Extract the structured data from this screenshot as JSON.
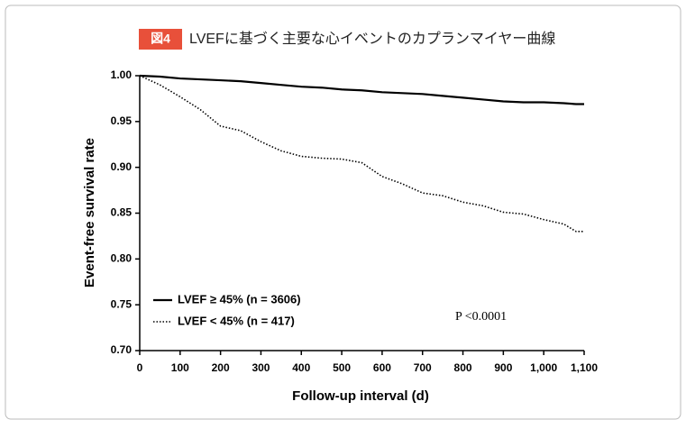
{
  "chart_data": {
    "type": "line",
    "badge": "図4",
    "title": "LVEFに基づく主要な心イベントのカプランマイヤー曲線",
    "x_label": "Follow-up interval (d)",
    "y_label": "Event-free survival rate",
    "annotation": "P <0.0001",
    "x": [
      0,
      50,
      100,
      150,
      200,
      250,
      300,
      350,
      400,
      450,
      500,
      550,
      600,
      650,
      700,
      750,
      800,
      850,
      900,
      950,
      1000,
      1050,
      1080,
      1100
    ],
    "series": [
      {
        "name": "LVEF ≥ 45% (n = 3606)",
        "color": "#000000",
        "style": "solid",
        "values": [
          1.0,
          0.999,
          0.997,
          0.996,
          0.995,
          0.994,
          0.992,
          0.99,
          0.988,
          0.987,
          0.985,
          0.984,
          0.982,
          0.981,
          0.98,
          0.978,
          0.976,
          0.974,
          0.972,
          0.971,
          0.971,
          0.97,
          0.969,
          0.969
        ]
      },
      {
        "name": "LVEF < 45% (n = 417)",
        "color": "#000000",
        "style": "dotted",
        "values": [
          1.0,
          0.99,
          0.977,
          0.963,
          0.945,
          0.94,
          0.928,
          0.918,
          0.912,
          0.91,
          0.909,
          0.905,
          0.89,
          0.882,
          0.872,
          0.869,
          0.862,
          0.858,
          0.851,
          0.849,
          0.843,
          0.838,
          0.83,
          0.83
        ]
      }
    ],
    "xlim": [
      0,
      1100
    ],
    "xticks": [
      0,
      100,
      200,
      300,
      400,
      500,
      600,
      700,
      800,
      900,
      {
        "value": 1000,
        "label": "1,000"
      },
      {
        "value": 1100,
        "label": "1,100"
      }
    ],
    "ylim": [
      0.7,
      1.0
    ],
    "yticks": [
      {
        "value": 0.7,
        "label": "0.70"
      },
      0.75,
      {
        "value": 0.8,
        "label": "0.80"
      },
      0.85,
      {
        "value": 0.9,
        "label": "0.90"
      },
      0.95,
      {
        "value": 1.0,
        "label": "1.00"
      }
    ],
    "legend": "lower left"
  }
}
